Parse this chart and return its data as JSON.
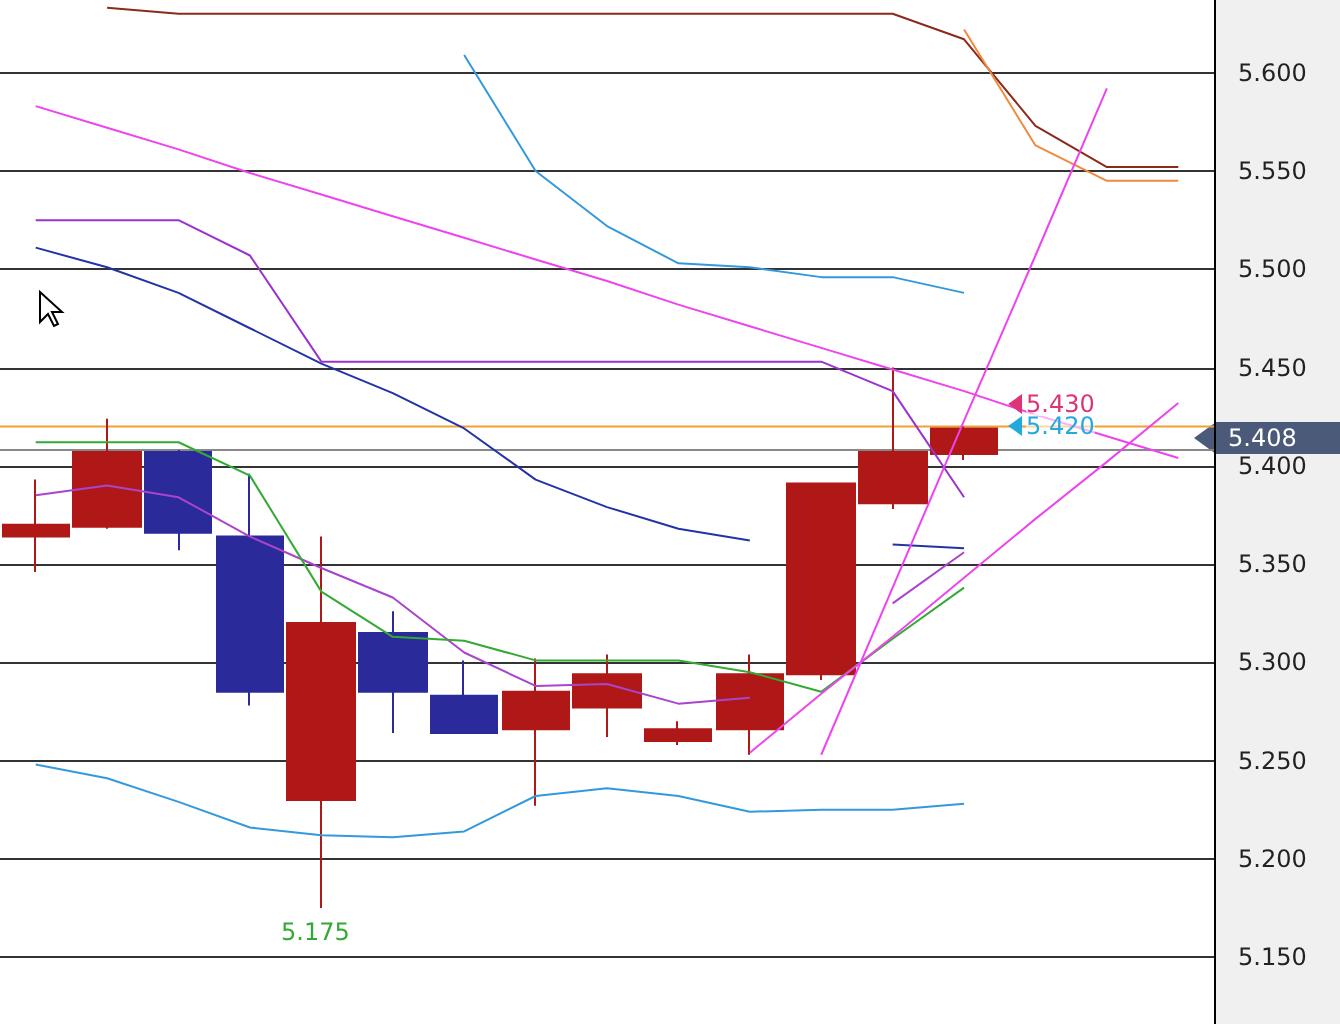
{
  "chart_data": {
    "type": "candlestick",
    "categories": [
      null,
      null,
      null,
      null,
      null,
      null,
      null,
      null,
      null,
      null,
      null,
      null,
      null,
      null,
      null,
      null,
      null
    ],
    "ohlc": [
      [
        5.364,
        5.393,
        5.346,
        5.37
      ],
      [
        5.369,
        5.424,
        5.368,
        5.407
      ],
      [
        5.407,
        5.408,
        5.357,
        5.366
      ],
      [
        5.364,
        5.396,
        5.278,
        5.285
      ],
      [
        5.23,
        5.364,
        5.175,
        5.32
      ],
      [
        5.315,
        5.326,
        5.264,
        5.285
      ],
      [
        5.283,
        5.301,
        5.264,
        5.264
      ],
      [
        5.266,
        5.302,
        5.227,
        5.285
      ],
      [
        5.277,
        5.304,
        5.262,
        5.294
      ],
      [
        5.26,
        5.27,
        5.258,
        5.266
      ],
      [
        5.266,
        5.304,
        5.253,
        5.294
      ],
      [
        5.294,
        5.391,
        5.291,
        5.391
      ],
      [
        5.381,
        5.45,
        5.378,
        5.407
      ],
      [
        5.406,
        5.42,
        5.403,
        5.419
      ],
      null,
      null,
      null
    ],
    "series": [
      {
        "type": "line",
        "color": "#8b2a1a",
        "values": [
          null,
          5.633,
          5.63,
          5.63,
          5.63,
          5.63,
          5.63,
          5.63,
          5.63,
          5.63,
          5.63,
          5.63,
          5.63,
          5.617,
          5.573,
          5.552,
          5.552
        ]
      },
      {
        "type": "line",
        "color": "#f08a40",
        "values": [
          null,
          null,
          null,
          null,
          null,
          null,
          null,
          null,
          null,
          null,
          null,
          null,
          null,
          5.622,
          5.563,
          5.545,
          5.545
        ]
      },
      {
        "type": "line",
        "color": "#3399dd",
        "values": [
          null,
          null,
          null,
          null,
          null,
          null,
          5.609,
          5.55,
          5.522,
          5.503,
          5.501,
          5.496,
          5.496,
          5.488,
          null,
          null,
          null
        ]
      },
      {
        "type": "line",
        "color": "#3399dd",
        "values": [
          5.248,
          5.241,
          5.229,
          5.216,
          5.212,
          5.211,
          5.214,
          5.232,
          5.236,
          5.232,
          5.224,
          5.225,
          5.225,
          5.228,
          null,
          null,
          null
        ]
      },
      {
        "type": "line",
        "color": "#2233aa",
        "values": [
          5.511,
          5.501,
          5.488,
          5.47,
          5.452,
          5.437,
          5.419,
          5.393,
          5.379,
          5.368,
          5.362,
          null,
          5.36,
          5.358,
          null,
          null,
          null
        ]
      },
      {
        "type": "line",
        "color": "#9933cc",
        "values": [
          5.525,
          5.525,
          5.525,
          5.507,
          5.453,
          5.453,
          5.453,
          5.453,
          5.453,
          5.453,
          5.453,
          5.453,
          5.438,
          5.384,
          null,
          null,
          null
        ]
      },
      {
        "type": "line",
        "color": "#aa44cc",
        "values": [
          5.385,
          5.39,
          5.384,
          5.364,
          5.348,
          5.333,
          5.305,
          5.288,
          5.289,
          5.279,
          5.282,
          null,
          5.33,
          5.356,
          null,
          null,
          null
        ]
      },
      {
        "type": "line",
        "color": "#33aa33",
        "values": [
          5.412,
          5.412,
          5.412,
          5.395,
          5.336,
          5.313,
          5.311,
          5.301,
          5.301,
          5.301,
          5.295,
          5.285,
          5.312,
          5.338,
          null,
          null,
          null
        ]
      },
      {
        "type": "line",
        "color": "#ee44ee",
        "values": [
          5.583,
          5.572,
          5.561,
          5.549,
          5.538,
          5.527,
          5.516,
          5.505,
          5.494,
          5.482,
          5.471,
          5.46,
          5.449,
          5.438,
          5.426,
          5.415,
          5.404
        ]
      },
      {
        "type": "line",
        "color": "#ee44ee",
        "values": [
          null,
          null,
          null,
          null,
          null,
          null,
          null,
          null,
          null,
          null,
          null,
          5.253,
          5.338,
          5.423,
          5.507,
          5.592,
          null
        ]
      },
      {
        "type": "line",
        "color": "#ee44ee",
        "values": [
          null,
          null,
          null,
          null,
          null,
          null,
          null,
          null,
          null,
          null,
          5.254,
          5.284,
          5.313,
          5.343,
          5.373,
          5.402,
          5.432
        ]
      }
    ],
    "ylim": [
      5.116,
      5.637
    ],
    "yticks": [
      {
        "value": 5.15,
        "label": "5.150"
      },
      {
        "value": 5.2,
        "label": "5.200"
      },
      {
        "value": 5.25,
        "label": "5.250"
      },
      {
        "value": 5.3,
        "label": "5.300"
      },
      {
        "value": 5.35,
        "label": "5.350"
      },
      {
        "value": 5.4,
        "label": "5.400"
      },
      {
        "value": 5.45,
        "label": "5.450"
      },
      {
        "value": 5.5,
        "label": "5.500"
      },
      {
        "value": 5.55,
        "label": "5.550"
      },
      {
        "value": 5.6,
        "label": "5.600"
      }
    ],
    "grid": "y",
    "ref_lines": [
      {
        "axis": "y",
        "value": 5.42,
        "color": "#f0a030"
      },
      {
        "axis": "y",
        "value": 5.408,
        "label": "5.408",
        "color": "#888888"
      }
    ],
    "annotations": [
      "5.430",
      "5.420",
      {
        "text": "5.175",
        "y": 5.175
      }
    ]
  }
}
